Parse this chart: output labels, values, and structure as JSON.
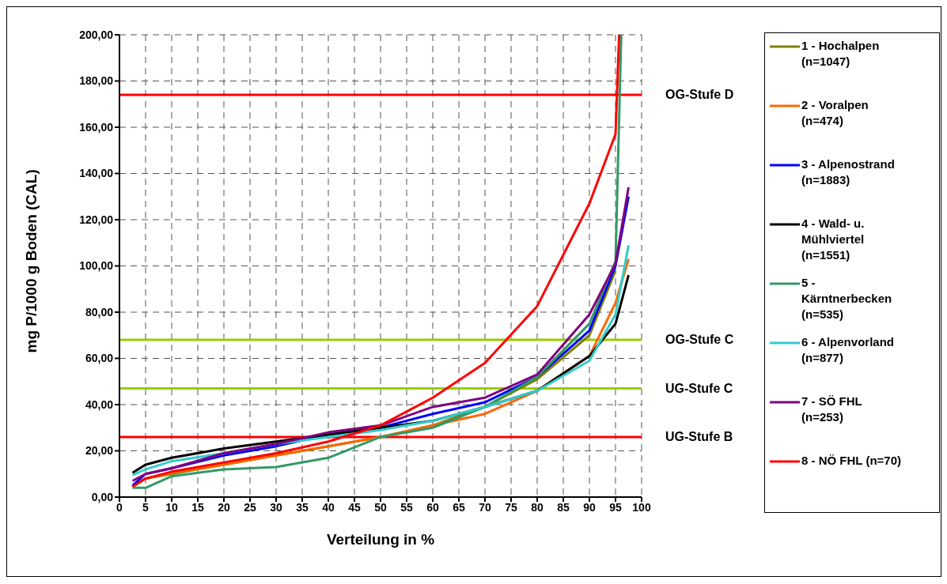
{
  "chart_data": {
    "type": "line",
    "xlabel": "Verteilung in %",
    "ylabel": "mg P/1000 g Boden (CAL)",
    "x": [
      2.5,
      5,
      10,
      20,
      30,
      40,
      50,
      60,
      70,
      80,
      90,
      95,
      97.5
    ],
    "series": [
      {
        "name": "1 - Hochalpen (n=1047)",
        "color": "#808000",
        "values": [
          4.5,
          8,
          10,
          14,
          18,
          22,
          26,
          31,
          39,
          51,
          70,
          98,
          null
        ]
      },
      {
        "name": "2 - Voralpen (n=474)",
        "color": "#ff6600",
        "values": [
          4.5,
          8,
          10.5,
          14,
          18,
          22,
          26,
          31,
          36,
          46,
          61,
          84,
          103
        ]
      },
      {
        "name": "3 - Alpenostrand (n=1883)",
        "color": "#0000ff",
        "values": [
          5,
          10,
          12.5,
          18,
          22,
          27,
          30,
          36,
          41,
          52,
          72,
          100,
          130
        ]
      },
      {
        "name": "4 - Wald- u. Mühlviertel (n=1551)",
        "color": "#000000",
        "values": [
          10.5,
          14,
          17,
          21,
          24,
          27,
          30,
          33,
          39,
          46,
          61,
          75,
          96
        ]
      },
      {
        "name": "5 - Kärntnerbecken (n=535)",
        "color": "#339966",
        "x": [
          2.5,
          5,
          10,
          20,
          30,
          40,
          50,
          60,
          70,
          80,
          90,
          95,
          96.1
        ],
        "values": [
          4,
          4,
          9,
          12,
          13,
          17,
          26,
          30,
          39,
          52,
          75,
          102,
          200
        ]
      },
      {
        "name": "6 - Alpenvorland (n=877)",
        "color": "#33cccc",
        "values": [
          9.5,
          12,
          15.5,
          19,
          23,
          26,
          29,
          33,
          39,
          46,
          59,
          79,
          109
        ]
      },
      {
        "name": "7 - SÖ FHL (n=253)",
        "color": "#800080",
        "values": [
          7,
          10,
          12.5,
          19,
          23,
          28,
          31,
          39,
          43,
          53,
          79,
          101,
          134
        ]
      },
      {
        "name": "8 - NÖ FHL (n=70)",
        "color": "#ff0000",
        "x": [
          2.5,
          5,
          10,
          20,
          30,
          40,
          50,
          60,
          70,
          80,
          90,
          95,
          95.7
        ],
        "values": [
          4.5,
          8,
          11,
          15,
          19,
          24,
          31,
          43,
          58,
          82.6,
          127,
          157,
          200
        ]
      }
    ],
    "ref_lines": [
      {
        "axis": "y",
        "value": 174,
        "label": "OG-Stufe D",
        "color": "#ff0000"
      },
      {
        "axis": "y",
        "value": 68,
        "label": "OG-Stufe C",
        "color": "#99cc00"
      },
      {
        "axis": "y",
        "value": 47,
        "label": "UG-Stufe C",
        "color": "#99cc00"
      },
      {
        "axis": "y",
        "value": 26,
        "label": "UG-Stufe B",
        "color": "#ff0000"
      }
    ],
    "xlim": [
      0,
      100
    ],
    "xticks": [
      0,
      5,
      10,
      15,
      20,
      25,
      30,
      35,
      40,
      45,
      50,
      55,
      60,
      65,
      70,
      75,
      80,
      85,
      90,
      95,
      100
    ],
    "ylim": [
      0,
      200
    ],
    "yticks": [
      {
        "value": 0,
        "label": "0,00"
      },
      {
        "value": 20,
        "label": "20,00"
      },
      {
        "value": 40,
        "label": "40,00"
      },
      {
        "value": 60,
        "label": "60,00"
      },
      {
        "value": 80,
        "label": "80,00"
      },
      {
        "value": 100,
        "label": "100,00"
      },
      {
        "value": 120,
        "label": "120,00"
      },
      {
        "value": 140,
        "label": "140,00"
      },
      {
        "value": 160,
        "label": "160,00"
      },
      {
        "value": 180,
        "label": "180,00"
      },
      {
        "value": 200,
        "label": "200,00"
      }
    ],
    "grid": true,
    "legend": "right",
    "marker": "none",
    "line_style": "solid"
  }
}
